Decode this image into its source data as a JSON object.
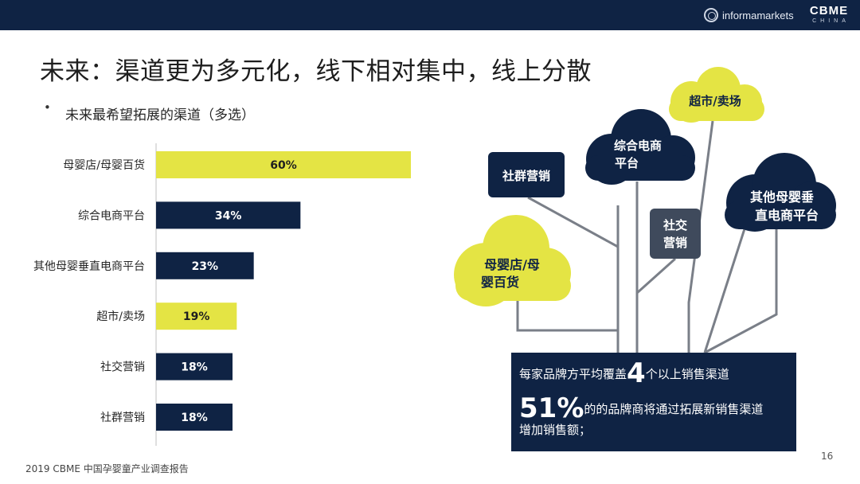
{
  "header": {
    "informa_logo_text": "informamarkets",
    "cbme_logo_text": "CBME",
    "cbme_logo_subtext": "CHINA"
  },
  "title": "未来：渠道更为多元化，线下相对集中，线上分散",
  "subtitle_bullet": "•",
  "subtitle": "未来最希望拓展的渠道（多选）",
  "colors": {
    "navy": "#0f2344",
    "yellow": "#e4e444",
    "slate": "#3f4a5c",
    "branch_line": "#7a7f88"
  },
  "chart_data": {
    "type": "bar",
    "orientation": "horizontal",
    "categories": [
      "母婴店/母婴百货",
      "综合电商平台",
      "其他母婴垂直电商平台",
      "超市/卖场",
      "社交营销",
      "社群营销"
    ],
    "values": [
      60,
      34,
      23,
      19,
      18,
      18
    ],
    "value_labels": [
      "60%",
      "34%",
      "23%",
      "19%",
      "18%",
      "18%"
    ],
    "bar_colors": [
      "#e4e444",
      "#0f2344",
      "#0f2344",
      "#e4e444",
      "#0f2344",
      "#0f2344"
    ],
    "label_colors": [
      "#1f1f1f",
      "#ffffff",
      "#ffffff",
      "#1f1f1f",
      "#ffffff",
      "#ffffff"
    ],
    "title": "",
    "xlabel": "",
    "ylabel": "",
    "xlim": [
      0,
      60
    ],
    "grid": false,
    "legend": "none"
  },
  "diagram": {
    "clouds": [
      {
        "id": "cloud-muying",
        "lines": [
          "母婴店/母",
          "婴百货"
        ],
        "fill": "#e4e444",
        "text_color": "#0f2344"
      },
      {
        "id": "cloud-zonghe",
        "lines": [
          "综合电商",
          "平台"
        ],
        "fill": "#0f2344",
        "text_color": "#ffffff"
      },
      {
        "id": "cloud-chaoshi",
        "lines": [
          "超市/卖场"
        ],
        "fill": "#e4e444",
        "text_color": "#0f2344"
      },
      {
        "id": "cloud-qita",
        "lines": [
          "其他母婴垂",
          "直电商平台"
        ],
        "fill": "#0f2344",
        "text_color": "#ffffff"
      }
    ],
    "boxes": [
      {
        "id": "box-shequn",
        "lines": [
          "社群营销"
        ],
        "fill": "#0f2344",
        "text_color": "#ffffff"
      },
      {
        "id": "box-shejiao",
        "lines": [
          "社交",
          "营销"
        ],
        "fill": "#3f4a5c",
        "text_color": "#ffffff"
      }
    ]
  },
  "summary": {
    "line1_prefix": "每家品牌方平均覆盖",
    "line1_big": "4",
    "line1_suffix": "个以上销售渠道",
    "line2_big": "51%",
    "line2_suffix": "的的品牌商将通过拓展新销售渠道",
    "line3": "增加销售额；"
  },
  "footer": "2019 CBME 中国孕婴童产业调查报告",
  "page_number": "16"
}
